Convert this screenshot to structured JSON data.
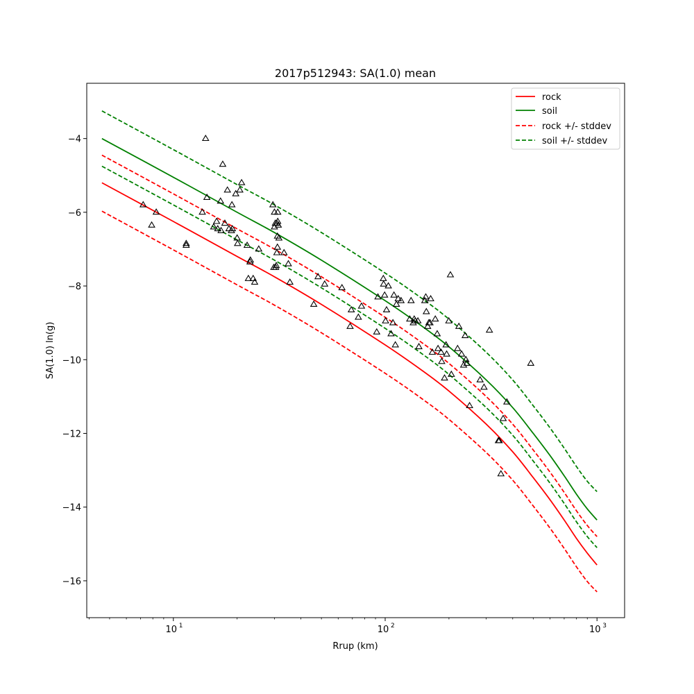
{
  "chart_data": {
    "type": "scatter",
    "title": "2017p512943: SA(1.0) mean",
    "xlabel": "Rrup (km)",
    "ylabel": "SA(1.0) ln(g)",
    "xscale": "log",
    "xlim": [
      3.9,
      1350
    ],
    "ylim": [
      -17,
      -2.5
    ],
    "x_ticks": [
      10,
      100,
      1000
    ],
    "x_tick_labels": [
      "10",
      "10",
      "10"
    ],
    "x_tick_exponents": [
      "1",
      "2",
      "3"
    ],
    "y_ticks": [
      -16,
      -14,
      -12,
      -10,
      -8,
      -6,
      -4
    ],
    "y_tick_labels": [
      "−16",
      "−14",
      "−12",
      "−10",
      "−8",
      "−6",
      "−4"
    ],
    "grid": false,
    "legend_position": "top-right",
    "series": [
      {
        "name": "rock",
        "kind": "line",
        "style": "solid",
        "color": "#ff0000",
        "x": [
          4.6,
          10,
          20,
          30,
          50,
          100,
          150,
          200,
          300,
          400,
          500,
          600,
          700,
          800,
          900,
          1000
        ],
        "y": [
          -5.2,
          -6.25,
          -7.2,
          -7.75,
          -8.5,
          -9.6,
          -10.3,
          -10.85,
          -11.75,
          -12.5,
          -13.2,
          -13.8,
          -14.35,
          -14.85,
          -15.25,
          -15.57
        ]
      },
      {
        "name": "soil",
        "kind": "line",
        "style": "solid",
        "color": "#008000",
        "x": [
          4.6,
          10,
          20,
          30,
          50,
          100,
          150,
          200,
          300,
          400,
          500,
          600,
          700,
          800,
          900,
          1000
        ],
        "y": [
          -4.0,
          -5.05,
          -6.0,
          -6.55,
          -7.3,
          -8.4,
          -9.1,
          -9.65,
          -10.55,
          -11.3,
          -12.0,
          -12.6,
          -13.15,
          -13.65,
          -14.05,
          -14.35
        ]
      },
      {
        "name": "rock +/- stddev",
        "kind": "line",
        "style": "dashed",
        "color": "#ff0000",
        "x": [
          4.6,
          10,
          20,
          30,
          50,
          100,
          150,
          200,
          300,
          400,
          500,
          600,
          700,
          800,
          900,
          1000
        ],
        "y": [
          -4.45,
          -5.5,
          -6.45,
          -7.0,
          -7.75,
          -8.85,
          -9.55,
          -10.1,
          -11.0,
          -11.75,
          -12.45,
          -13.05,
          -13.6,
          -14.1,
          -14.5,
          -14.8
        ]
      },
      {
        "name": "",
        "kind": "line",
        "style": "dashed",
        "color": "#ff0000",
        "x": [
          4.6,
          10,
          20,
          30,
          50,
          100,
          150,
          200,
          300,
          400,
          500,
          600,
          700,
          800,
          900,
          1000
        ],
        "y": [
          -5.97,
          -7.02,
          -7.97,
          -8.52,
          -9.27,
          -10.37,
          -11.07,
          -11.62,
          -12.52,
          -13.27,
          -13.97,
          -14.57,
          -15.12,
          -15.62,
          -16.02,
          -16.3
        ]
      },
      {
        "name": "soil +/- stddev",
        "kind": "line",
        "style": "dashed",
        "color": "#008000",
        "x": [
          4.6,
          10,
          20,
          30,
          50,
          100,
          150,
          200,
          300,
          400,
          500,
          600,
          700,
          800,
          900,
          1000
        ],
        "y": [
          -3.25,
          -4.3,
          -5.25,
          -5.8,
          -6.55,
          -7.65,
          -8.35,
          -8.9,
          -9.8,
          -10.55,
          -11.25,
          -11.85,
          -12.4,
          -12.9,
          -13.3,
          -13.58
        ]
      },
      {
        "name": "",
        "kind": "line",
        "style": "dashed",
        "color": "#008000",
        "x": [
          4.6,
          10,
          20,
          30,
          50,
          100,
          150,
          200,
          300,
          400,
          500,
          600,
          700,
          800,
          900,
          1000
        ],
        "y": [
          -4.75,
          -5.8,
          -6.75,
          -7.3,
          -8.05,
          -9.15,
          -9.85,
          -10.4,
          -11.3,
          -12.05,
          -12.75,
          -13.35,
          -13.9,
          -14.4,
          -14.8,
          -15.1
        ]
      },
      {
        "name": "",
        "kind": "scatter",
        "marker": "triangle-open",
        "color": "#000000",
        "x": [
          7.2,
          7.9,
          8.3,
          11.5,
          11.5,
          13.7,
          14.2,
          14.4,
          15.5,
          16.0,
          16.2,
          16.7,
          16.8,
          17.1,
          17.5,
          18.0,
          18.3,
          18.8,
          18.9,
          19.0,
          19.7,
          20.0,
          20.1,
          20.6,
          21.0,
          22.3,
          22.6,
          23.0,
          23.1,
          23.8,
          24.2,
          25.3,
          29.5,
          29.8,
          30.0,
          30.0,
          30.3,
          30.4,
          30.6,
          30.8,
          30.8,
          31.0,
          31.0,
          31.1,
          31.1,
          31.3,
          31.5,
          33.3,
          34.9,
          35.5,
          46.0,
          48.2,
          51.8,
          62.5,
          68.3,
          69.2,
          74.7,
          77.3,
          91.2,
          92.4,
          98.0,
          98.3,
          99.4,
          100.4,
          101.5,
          103.5,
          106.6,
          108.8,
          110.0,
          111.7,
          113.0,
          115.2,
          118.8,
          130.6,
          132.5,
          135.7,
          137.1,
          138.8,
          142.7,
          144.3,
          153.8,
          155.5,
          156.4,
          158.7,
          160.8,
          162.8,
          164.0,
          167.0,
          172.4,
          176.0,
          177.6,
          183.6,
          184.9,
          190.6,
          193.8,
          195.1,
          199.7,
          203.2,
          205.3,
          219.7,
          222.8,
          229.5,
          234.6,
          238.5,
          240.4,
          243.1,
          250.3,
          280.6,
          292.8,
          310.6,
          342.3,
          345.5,
          352.0,
          360.5,
          375.3,
          486.8
        ],
        "y": [
          -5.8,
          -6.35,
          -6.0,
          -6.85,
          -6.9,
          -6.0,
          -4.0,
          -5.6,
          -6.4,
          -6.25,
          -6.45,
          -5.7,
          -6.5,
          -4.7,
          -6.3,
          -5.4,
          -6.45,
          -6.5,
          -5.8,
          -6.45,
          -5.5,
          -6.7,
          -6.85,
          -5.4,
          -5.2,
          -6.9,
          -7.8,
          -7.35,
          -7.3,
          -7.8,
          -7.9,
          -7.0,
          -5.8,
          -7.5,
          -6.0,
          -6.4,
          -6.3,
          -7.5,
          -7.45,
          -6.3,
          -7.1,
          -6.65,
          -6.95,
          -6.0,
          -6.25,
          -6.35,
          -6.7,
          -7.1,
          -7.4,
          -7.9,
          -8.5,
          -7.75,
          -7.95,
          -8.05,
          -9.1,
          -8.65,
          -8.85,
          -8.55,
          -9.25,
          -8.3,
          -7.8,
          -7.95,
          -8.25,
          -8.95,
          -8.65,
          -8.0,
          -9.3,
          -9.0,
          -8.25,
          -9.6,
          -8.5,
          -8.35,
          -8.4,
          -8.9,
          -8.4,
          -9.0,
          -8.9,
          -8.95,
          -8.95,
          -9.65,
          -8.4,
          -8.3,
          -8.7,
          -9.1,
          -9.0,
          -9.0,
          -8.35,
          -9.8,
          -8.9,
          -9.3,
          -9.7,
          -9.8,
          -10.05,
          -10.5,
          -9.6,
          -9.85,
          -8.95,
          -7.7,
          -10.4,
          -9.7,
          -9.1,
          -9.85,
          -10.15,
          -9.35,
          -10.0,
          -10.1,
          -11.25,
          -10.55,
          -10.75,
          -9.2,
          -12.2,
          -12.2,
          -13.1,
          -11.6,
          -11.15,
          -10.1
        ]
      }
    ]
  }
}
